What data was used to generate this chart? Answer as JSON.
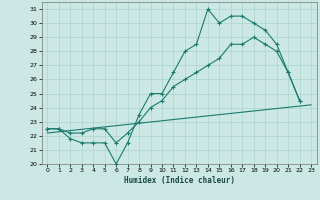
{
  "xlabel": "Humidex (Indice chaleur)",
  "bg_color": "#cce8e4",
  "line_color": "#1a7a6e",
  "grid_color": "#aad4cc",
  "xlim": [
    -0.5,
    23.5
  ],
  "ylim": [
    20,
    31.5
  ],
  "xticks": [
    0,
    1,
    2,
    3,
    4,
    5,
    6,
    7,
    8,
    9,
    10,
    11,
    12,
    13,
    14,
    15,
    16,
    17,
    18,
    19,
    20,
    21,
    22,
    23
  ],
  "yticks": [
    20,
    21,
    22,
    23,
    24,
    25,
    26,
    27,
    28,
    29,
    30,
    31
  ],
  "line1_x": [
    0,
    1,
    2,
    3,
    4,
    5,
    6,
    7,
    8,
    9,
    10,
    11,
    12,
    13,
    14,
    15,
    16,
    17,
    18,
    19,
    20,
    21,
    22
  ],
  "line1_y": [
    22.5,
    22.5,
    21.8,
    21.5,
    21.5,
    21.5,
    20.0,
    21.5,
    23.5,
    25.0,
    25.0,
    26.5,
    28.0,
    28.5,
    31.0,
    30.0,
    30.5,
    30.5,
    30.0,
    29.5,
    28.5,
    26.5,
    24.5
  ],
  "line2_x": [
    0,
    1,
    2,
    3,
    4,
    5,
    6,
    7,
    8,
    9,
    10,
    11,
    12,
    13,
    14,
    15,
    16,
    17,
    18,
    19,
    20,
    21,
    22
  ],
  "line2_y": [
    22.5,
    22.5,
    22.2,
    22.2,
    22.5,
    22.5,
    21.5,
    22.2,
    23.0,
    24.0,
    24.5,
    25.5,
    26.0,
    26.5,
    27.0,
    27.5,
    28.5,
    28.5,
    29.0,
    28.5,
    28.0,
    26.5,
    24.5
  ],
  "line3_x": [
    0,
    23
  ],
  "line3_y": [
    22.2,
    24.2
  ]
}
